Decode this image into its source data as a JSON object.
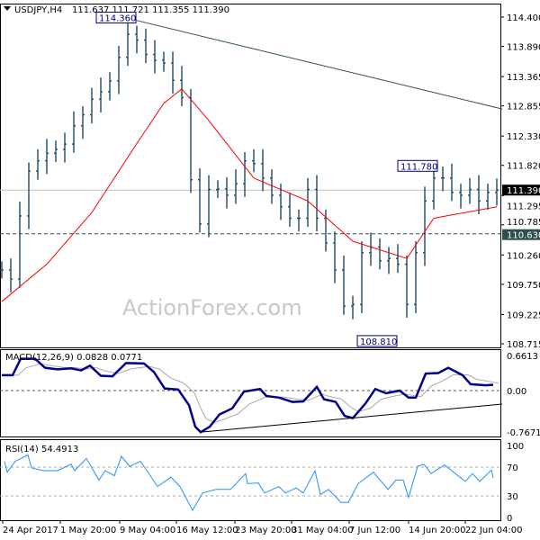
{
  "header": {
    "symbol": "USDJPY,H4",
    "ohlc": "111.637 111.721 111.355 111.390"
  },
  "watermark": "ActionForex.com",
  "chart_data": [
    {
      "type": "ohlc-bar",
      "title": "USDJPY,H4 111.637 111.721 111.355 111.390",
      "ylim": [
        108.715,
        114.4
      ],
      "y_ticks": [
        "114.400",
        "113.890",
        "113.365",
        "112.855",
        "112.330",
        "111.820",
        "111.295",
        "110.785",
        "110.260",
        "109.750",
        "109.225",
        "108.715"
      ],
      "closes": [
        110.0,
        109.84,
        110.94,
        111.72,
        111.9,
        112.03,
        112.1,
        112.19,
        112.51,
        112.7,
        112.97,
        113.1,
        113.29,
        113.7,
        114.1,
        114.0,
        113.75,
        113.65,
        113.6,
        113.3,
        113.0,
        111.57,
        110.8,
        111.4,
        111.41,
        111.3,
        111.5,
        111.9,
        111.85,
        111.6,
        111.3,
        111.1,
        110.9,
        110.9,
        111.4,
        110.9,
        110.47,
        110.0,
        109.37,
        109.4,
        110.3,
        110.4,
        110.16,
        110.2,
        110.1,
        109.4,
        110.3,
        111.2,
        111.6,
        111.6,
        111.35,
        111.3,
        111.4,
        111.2,
        111.35,
        111.39
      ],
      "moving_average": [
        [
          0,
          109.45
        ],
        [
          5,
          110.1
        ],
        [
          10,
          111.0
        ],
        [
          15,
          112.2
        ],
        [
          18,
          112.9
        ],
        [
          20,
          113.15
        ],
        [
          23,
          112.6
        ],
        [
          28,
          111.6
        ],
        [
          34,
          111.2
        ],
        [
          39,
          110.5
        ],
        [
          45,
          110.2
        ],
        [
          48,
          110.9
        ],
        [
          55,
          111.1
        ]
      ],
      "trendline": [
        [
          14.5,
          114.36
        ],
        [
          55.6,
          112.8
        ]
      ],
      "current_price": "111.390",
      "support_level": "110.630",
      "annotations": [
        {
          "label": "114.360",
          "bar": 14.5,
          "price": 114.36
        },
        {
          "label": "111.780",
          "bar": 48,
          "price": 111.78
        },
        {
          "label": "108.810",
          "bar": 45,
          "price": 108.81
        }
      ],
      "colors": {
        "bars": "#1b4a66",
        "ma": "#ff0000",
        "current": "#000000",
        "support": "#2f4f4f",
        "annotation": "#000080"
      }
    },
    {
      "type": "line",
      "title": "MACD(12,26,9) 0.0828 0.0771",
      "ylim": [
        -0.7671,
        0.6613
      ],
      "y_ticks": [
        "0.6613",
        "0.00",
        "-0.7671"
      ],
      "macd": [
        [
          0,
          0.29
        ],
        [
          1.2,
          0.29
        ],
        [
          2.1,
          0.6
        ],
        [
          3.7,
          0.6
        ],
        [
          4.8,
          0.43
        ],
        [
          6.2,
          0.4
        ],
        [
          7.7,
          0.42
        ],
        [
          8.8,
          0.38
        ],
        [
          9.8,
          0.47
        ],
        [
          11,
          0.28
        ],
        [
          12.3,
          0.27
        ],
        [
          13.8,
          0.52
        ],
        [
          15.8,
          0.51
        ],
        [
          16.9,
          0.35
        ],
        [
          18.1,
          0.04
        ],
        [
          19.6,
          0.02
        ],
        [
          20.8,
          -0.27
        ],
        [
          21.5,
          -0.67
        ],
        [
          22.1,
          -0.77
        ],
        [
          23.1,
          -0.67
        ],
        [
          24.2,
          -0.44
        ],
        [
          25.6,
          -0.33
        ],
        [
          26.9,
          -0.02
        ],
        [
          28.7,
          0.03
        ],
        [
          29.4,
          -0.1
        ],
        [
          30.8,
          -0.13
        ],
        [
          32.3,
          -0.21
        ],
        [
          33.5,
          -0.2
        ],
        [
          35,
          0.07
        ],
        [
          35.8,
          -0.16
        ],
        [
          37.1,
          -0.21
        ],
        [
          38.1,
          -0.47
        ],
        [
          39,
          -0.51
        ],
        [
          40.4,
          -0.24
        ],
        [
          41.5,
          0.03
        ],
        [
          42.7,
          -0.05
        ],
        [
          44.2,
          0
        ],
        [
          45.2,
          -0.13
        ],
        [
          46,
          -0.13
        ],
        [
          47.1,
          0.32
        ],
        [
          48.5,
          0.33
        ],
        [
          49.6,
          0.43
        ],
        [
          51.2,
          0.29
        ],
        [
          52.1,
          0.12
        ],
        [
          53.8,
          0.1
        ],
        [
          54.6,
          0.11
        ]
      ],
      "trendline": [
        [
          22.1,
          -0.77
        ],
        [
          55.6,
          -0.25
        ]
      ],
      "colors": {
        "macd": "#00008b",
        "signal": "#a9a9a9"
      }
    },
    {
      "type": "line",
      "title": "RSI(14) 54.4913",
      "ylim": [
        0,
        100
      ],
      "y_ticks": [
        "100",
        "70",
        "30",
        "0"
      ],
      "levels": [
        70,
        30
      ],
      "rsi": [
        [
          0.3,
          78
        ],
        [
          0.6,
          63
        ],
        [
          1.5,
          78
        ],
        [
          2.9,
          87
        ],
        [
          3.3,
          69
        ],
        [
          4.6,
          65
        ],
        [
          6.2,
          65
        ],
        [
          7.7,
          74
        ],
        [
          8.1,
          65
        ],
        [
          9.4,
          82
        ],
        [
          10.8,
          52
        ],
        [
          11.5,
          65
        ],
        [
          12.5,
          58
        ],
        [
          13.3,
          85
        ],
        [
          14.2,
          71
        ],
        [
          15.4,
          78
        ],
        [
          16.5,
          58
        ],
        [
          17.3,
          43
        ],
        [
          18.8,
          56
        ],
        [
          19.8,
          43
        ],
        [
          21.2,
          10
        ],
        [
          22.3,
          34
        ],
        [
          23.8,
          39
        ],
        [
          25.4,
          39
        ],
        [
          27.1,
          61
        ],
        [
          27.3,
          47
        ],
        [
          28.5,
          48
        ],
        [
          29.2,
          34
        ],
        [
          30.8,
          43
        ],
        [
          31.5,
          34
        ],
        [
          32.7,
          41
        ],
        [
          33.5,
          34
        ],
        [
          34.8,
          65
        ],
        [
          35.4,
          32
        ],
        [
          36.3,
          39
        ],
        [
          37.7,
          21
        ],
        [
          38.5,
          21
        ],
        [
          39.6,
          47
        ],
        [
          41.3,
          63
        ],
        [
          42.9,
          39
        ],
        [
          43.8,
          52
        ],
        [
          44.6,
          52
        ],
        [
          45.2,
          28
        ],
        [
          46.2,
          71
        ],
        [
          46.9,
          74
        ],
        [
          47.7,
          61
        ],
        [
          49.2,
          73
        ],
        [
          50.4,
          61
        ],
        [
          51.5,
          50
        ],
        [
          52.3,
          61
        ],
        [
          53.1,
          50
        ],
        [
          54.4,
          66
        ],
        [
          54.6,
          55
        ]
      ],
      "colors": {
        "rsi": "#1e90ff",
        "levels": "#a9a9a9"
      }
    }
  ],
  "x_axis": {
    "labels": [
      "24 Apr 2017",
      "1 May 20:00",
      "9 May 04:00",
      "16 May 12:00",
      "23 May 20:00",
      "31 May 04:00",
      "7 Jun 12:00",
      "14 Jun 20:00",
      "22 Jun 04:00"
    ]
  }
}
